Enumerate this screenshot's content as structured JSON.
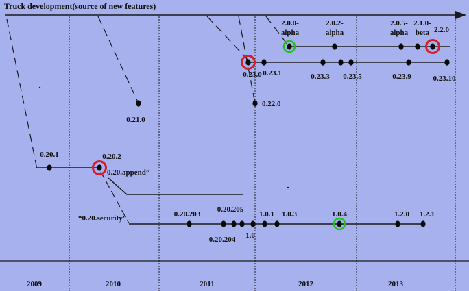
{
  "title": "Truck development(source of new features)",
  "years": [
    "2009",
    "2010",
    "2011",
    "2012",
    "2013"
  ],
  "colors": {
    "background": "#a6b1ee",
    "line": "#1a1a1a",
    "node": "#0a0a0a",
    "highlight_red": "#d0202a",
    "highlight_green": "#22c01e"
  },
  "branches": {
    "b020": {
      "nodes": [
        {
          "id": "n0201",
          "label": "0.20.1"
        },
        {
          "id": "n0202",
          "label": "0.20.2",
          "highlight": "red"
        }
      ]
    },
    "append": {
      "label": "0.20.append”"
    },
    "security": {
      "label": "“0.20.security”",
      "nodes": [
        {
          "id": "n020203",
          "label": "0.20.203"
        },
        {
          "id": "n020204",
          "label": "0.20.204"
        },
        {
          "id": "n020205",
          "label": "0.20.205"
        },
        {
          "id": "n10",
          "label": "1.0"
        },
        {
          "id": "n101",
          "label": "1.0.1"
        },
        {
          "id": "n102",
          "label": ""
        },
        {
          "id": "n103",
          "label": "1.0.3"
        },
        {
          "id": "n104",
          "label": "1.0.4",
          "highlight": "green"
        },
        {
          "id": "n120",
          "label": "1.2.0"
        },
        {
          "id": "n121",
          "label": "1.2.1"
        }
      ]
    },
    "b021": {
      "nodes": [
        {
          "id": "n0210",
          "label": "0.21.0"
        }
      ]
    },
    "b022": {
      "nodes": [
        {
          "id": "n0220",
          "label": "0.22.0"
        }
      ]
    },
    "b023": {
      "nodes": [
        {
          "id": "n0230",
          "label": "0.23.0",
          "highlight": "red"
        },
        {
          "id": "n0231",
          "label": "0.23.1"
        },
        {
          "id": "n0233",
          "label": "0.23.3"
        },
        {
          "id": "n0234",
          "label": ""
        },
        {
          "id": "n0235",
          "label": "0.23.5"
        },
        {
          "id": "n0239",
          "label": "0.23.9"
        },
        {
          "id": "n02310",
          "label": "0.23.10"
        }
      ]
    },
    "b2x": {
      "nodes": [
        {
          "id": "n200",
          "label": "2.0.0-",
          "label2": "alpha",
          "highlight": "green"
        },
        {
          "id": "n202",
          "label": "2.0.2-",
          "label2": "alpha"
        },
        {
          "id": "n205",
          "label": "2.0.5-",
          "label2": "alpha"
        },
        {
          "id": "n210",
          "label": "2.1.0-",
          "label2": "beta"
        },
        {
          "id": "n220",
          "label": "2.2.0",
          "highlight": "red"
        }
      ]
    }
  }
}
